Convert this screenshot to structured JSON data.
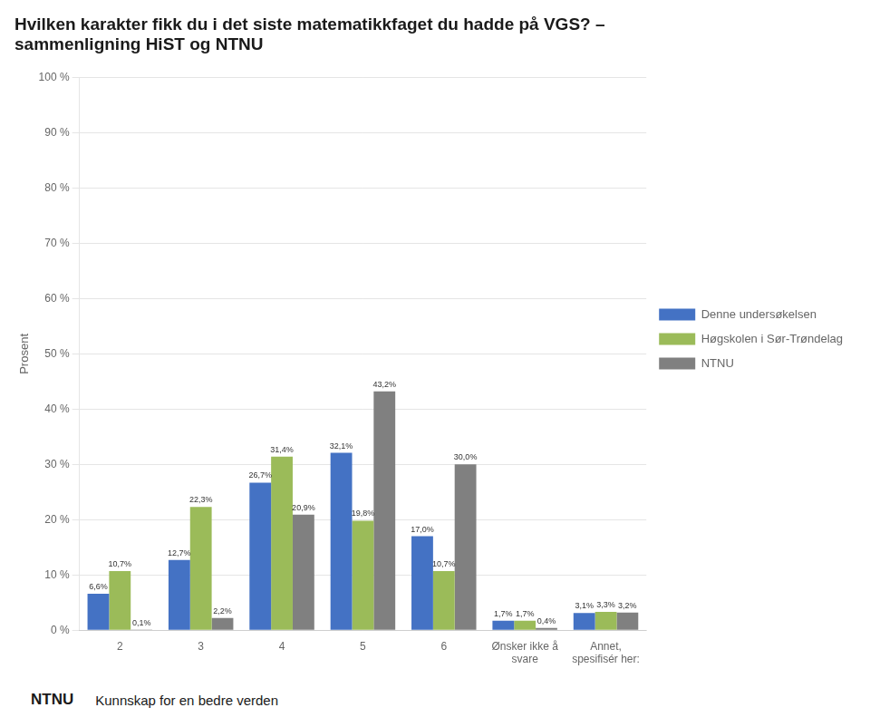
{
  "chart_data": {
    "type": "bar",
    "title": "Hvilken karakter fikk du i det siste matematikkfaget du hadde på VGS? –",
    "subtitle": "sammenligning HiST og NTNU",
    "y_label": "Prosent",
    "annotations": [
      "NTNU",
      "Kunnskap for en bedre verden"
    ],
    "categories": [
      "2",
      "3",
      "4",
      "5",
      "6",
      "Ønsker ikke å\nsvare",
      "Annet,\nspesifisér her:"
    ],
    "series": [
      {
        "name": "Denne undersøkelsen",
        "color": "#4472C4",
        "values": [
          6.6,
          12.7,
          26.7,
          32.1,
          17.0,
          1.7,
          3.1
        ],
        "value_labels": [
          "6,6%",
          "12,7%",
          "26,7%",
          "32,1%",
          "17,0%",
          "1,7%",
          "3,1%"
        ]
      },
      {
        "name": "Høgskolen i Sør-Trøndelag",
        "color": "#9BBB59",
        "values": [
          10.7,
          22.3,
          31.4,
          19.8,
          10.7,
          1.7,
          3.3
        ],
        "value_labels": [
          "10,7%",
          "22,3%",
          "31,4%",
          "19,8%",
          "10,7%",
          "1,7%",
          "3,3%"
        ]
      },
      {
        "name": "NTNU",
        "color": "#808080",
        "values": [
          0.1,
          2.2,
          20.9,
          43.2,
          30.0,
          0.4,
          3.2
        ],
        "value_labels": [
          "0,1%",
          "2,2%",
          "20,9%",
          "43,2%",
          "30,0%",
          "0,4%",
          "3,2%"
        ]
      }
    ],
    "ylim": [
      0,
      100
    ],
    "yticks": [
      {
        "value": 0,
        "label": "0 %"
      },
      {
        "value": 10,
        "label": "10 %"
      },
      {
        "value": 20,
        "label": "20 %"
      },
      {
        "value": 30,
        "label": "30 %"
      },
      {
        "value": 40,
        "label": "40 %"
      },
      {
        "value": 50,
        "label": "50 %"
      },
      {
        "value": 60,
        "label": "60 %"
      },
      {
        "value": 70,
        "label": "70 %"
      },
      {
        "value": 80,
        "label": "80 %"
      },
      {
        "value": 90,
        "label": "90 %"
      },
      {
        "value": 100,
        "label": "100 %"
      }
    ],
    "grid": true,
    "legend": "right",
    "data_labels": true
  }
}
